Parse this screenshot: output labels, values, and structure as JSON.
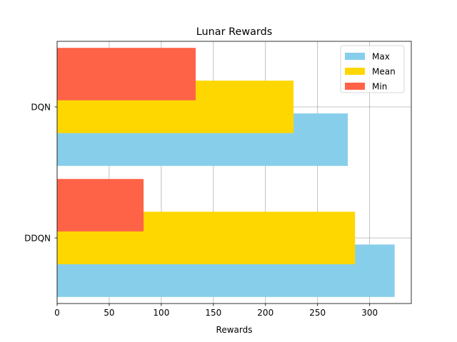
{
  "chart_data": {
    "type": "bar",
    "orientation": "horizontal",
    "title": "Lunar Rewards",
    "xlabel": "Rewards",
    "ylabel": "",
    "categories": [
      "DDQN",
      "DQN"
    ],
    "series": [
      {
        "name": "Max",
        "color": "#87ceeb",
        "values": [
          324,
          279
        ]
      },
      {
        "name": "Mean",
        "color": "#ffd700",
        "values": [
          286,
          227
        ]
      },
      {
        "name": "Min",
        "color": "#ff6347",
        "values": [
          83,
          133
        ]
      }
    ],
    "xlim": [
      0,
      340
    ],
    "xticks": [
      0,
      50,
      100,
      150,
      200,
      250,
      300
    ],
    "grid": true,
    "legend_position": "top-right"
  }
}
